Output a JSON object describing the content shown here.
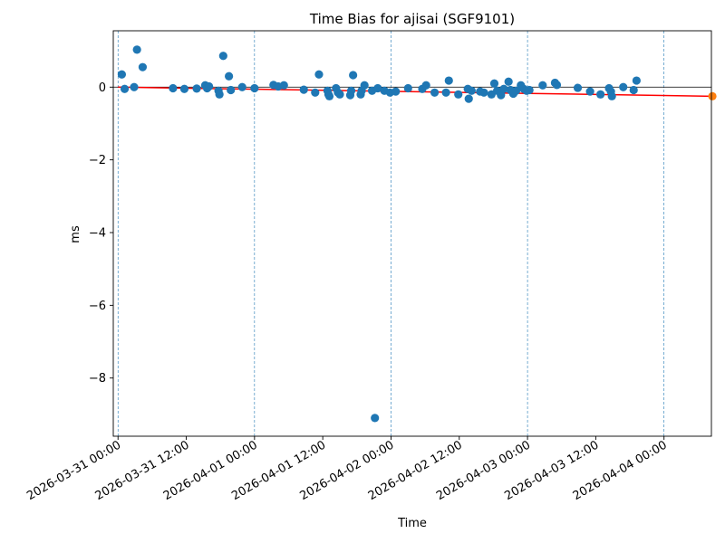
{
  "chart_data": {
    "type": "scatter",
    "title": "Time Bias for ajisai (SGF9101)",
    "xlabel": "Time",
    "ylabel": "ms",
    "xlim": [
      "2026-03-30 23:10",
      "2026-04-04 08:20"
    ],
    "ylim": [
      -9.6,
      1.55
    ],
    "x_ticks": [
      "2026-03-31 00:00",
      "2026-03-31 12:00",
      "2026-04-01 00:00",
      "2026-04-01 12:00",
      "2026-04-02 00:00",
      "2026-04-02 12:00",
      "2026-04-03 00:00",
      "2026-04-03 12:00",
      "2026-04-04 00:00"
    ],
    "x_tick_labels": [
      "2026-03-31 00:00",
      "2026-03-31 12:00",
      "2026-04-01 00:00",
      "2026-04-01 12:00",
      "2026-04-02 00:00",
      "2026-04-02 12:00",
      "2026-04-03 00:00",
      "2026-04-03 12:00",
      "2026-04-04 00:00"
    ],
    "y_ticks": [
      0,
      -2,
      -4,
      -6,
      -8
    ],
    "y_tick_labels": [
      "0",
      "−2",
      "−4",
      "−6",
      "−8"
    ],
    "vlines": [
      "2026-03-31 00:00",
      "2026-04-01 00:00",
      "2026-04-02 00:00",
      "2026-04-03 00:00",
      "2026-04-04 00:00"
    ],
    "hline": 0,
    "grid": false,
    "colors": {
      "points": "#1f77b4",
      "prediction": "#ff7f0e",
      "fit": "#ff0000",
      "vline": "#1f77b4",
      "hline": "#000000"
    },
    "series": [
      {
        "role": "measurements",
        "points": [
          {
            "x": "2026-03-31 00:40",
            "y": 0.35
          },
          {
            "x": "2026-03-31 01:10",
            "y": -0.05
          },
          {
            "x": "2026-03-31 02:50",
            "y": 0.0
          },
          {
            "x": "2026-03-31 03:20",
            "y": 1.03
          },
          {
            "x": "2026-03-31 04:20",
            "y": 0.55
          },
          {
            "x": "2026-03-31 09:40",
            "y": -0.03
          },
          {
            "x": "2026-03-31 11:40",
            "y": -0.05
          },
          {
            "x": "2026-03-31 13:50",
            "y": -0.04
          },
          {
            "x": "2026-03-31 15:20",
            "y": 0.05
          },
          {
            "x": "2026-03-31 15:40",
            "y": -0.03
          },
          {
            "x": "2026-03-31 16:00",
            "y": 0.02
          },
          {
            "x": "2026-03-31 17:40",
            "y": -0.1
          },
          {
            "x": "2026-03-31 17:50",
            "y": -0.2
          },
          {
            "x": "2026-03-31 18:30",
            "y": 0.86
          },
          {
            "x": "2026-03-31 19:30",
            "y": 0.3
          },
          {
            "x": "2026-03-31 19:50",
            "y": -0.08
          },
          {
            "x": "2026-03-31 21:50",
            "y": 0.0
          },
          {
            "x": "2026-04-01 00:00",
            "y": -0.03
          },
          {
            "x": "2026-04-01 03:20",
            "y": 0.06
          },
          {
            "x": "2026-04-01 04:10",
            "y": 0.02
          },
          {
            "x": "2026-04-01 05:10",
            "y": 0.05
          },
          {
            "x": "2026-04-01 08:40",
            "y": -0.07
          },
          {
            "x": "2026-04-01 10:40",
            "y": -0.15
          },
          {
            "x": "2026-04-01 11:20",
            "y": 0.35
          },
          {
            "x": "2026-04-01 12:50",
            "y": -0.1
          },
          {
            "x": "2026-04-01 13:00",
            "y": -0.2
          },
          {
            "x": "2026-04-01 13:10",
            "y": -0.25
          },
          {
            "x": "2026-04-01 14:20",
            "y": -0.03
          },
          {
            "x": "2026-04-01 14:40",
            "y": -0.15
          },
          {
            "x": "2026-04-01 15:00",
            "y": -0.2
          },
          {
            "x": "2026-04-01 16:50",
            "y": -0.22
          },
          {
            "x": "2026-04-01 17:00",
            "y": -0.1
          },
          {
            "x": "2026-04-01 17:20",
            "y": 0.33
          },
          {
            "x": "2026-04-01 18:40",
            "y": -0.2
          },
          {
            "x": "2026-04-01 18:50",
            "y": -0.1
          },
          {
            "x": "2026-04-01 19:20",
            "y": 0.05
          },
          {
            "x": "2026-04-01 20:40",
            "y": -0.1
          },
          {
            "x": "2026-04-01 21:10",
            "y": -9.1
          },
          {
            "x": "2026-04-01 21:40",
            "y": -0.03
          },
          {
            "x": "2026-04-01 22:50",
            "y": -0.1
          },
          {
            "x": "2026-04-01 23:50",
            "y": -0.15
          },
          {
            "x": "2026-04-02 00:50",
            "y": -0.12
          },
          {
            "x": "2026-04-02 03:00",
            "y": -0.03
          },
          {
            "x": "2026-04-02 05:30",
            "y": -0.05
          },
          {
            "x": "2026-04-02 06:10",
            "y": 0.05
          },
          {
            "x": "2026-04-02 07:40",
            "y": -0.15
          },
          {
            "x": "2026-04-02 09:40",
            "y": -0.15
          },
          {
            "x": "2026-04-02 10:10",
            "y": 0.18
          },
          {
            "x": "2026-04-02 11:50",
            "y": -0.2
          },
          {
            "x": "2026-04-02 13:30",
            "y": -0.05
          },
          {
            "x": "2026-04-02 13:40",
            "y": -0.32
          },
          {
            "x": "2026-04-02 14:10",
            "y": -0.1
          },
          {
            "x": "2026-04-02 15:40",
            "y": -0.12
          },
          {
            "x": "2026-04-02 16:20",
            "y": -0.15
          },
          {
            "x": "2026-04-02 17:40",
            "y": -0.2
          },
          {
            "x": "2026-04-02 18:10",
            "y": 0.1
          },
          {
            "x": "2026-04-02 18:40",
            "y": -0.1
          },
          {
            "x": "2026-04-02 19:20",
            "y": -0.22
          },
          {
            "x": "2026-04-02 19:50",
            "y": -0.05
          },
          {
            "x": "2026-04-02 20:40",
            "y": 0.15
          },
          {
            "x": "2026-04-02 21:00",
            "y": -0.08
          },
          {
            "x": "2026-04-02 21:30",
            "y": -0.18
          },
          {
            "x": "2026-04-02 22:00",
            "y": -0.1
          },
          {
            "x": "2026-04-02 22:50",
            "y": 0.05
          },
          {
            "x": "2026-04-02 23:20",
            "y": -0.05
          },
          {
            "x": "2026-04-02 23:50",
            "y": -0.1
          },
          {
            "x": "2026-04-03 00:20",
            "y": -0.08
          },
          {
            "x": "2026-04-03 02:40",
            "y": 0.05
          },
          {
            "x": "2026-04-03 04:50",
            "y": 0.12
          },
          {
            "x": "2026-04-03 05:10",
            "y": 0.06
          },
          {
            "x": "2026-04-03 08:50",
            "y": -0.02
          },
          {
            "x": "2026-04-03 11:00",
            "y": -0.12
          },
          {
            "x": "2026-04-03 12:50",
            "y": -0.2
          },
          {
            "x": "2026-04-03 14:20",
            "y": -0.03
          },
          {
            "x": "2026-04-03 14:40",
            "y": -0.12
          },
          {
            "x": "2026-04-03 14:50",
            "y": -0.25
          },
          {
            "x": "2026-04-03 16:50",
            "y": 0.0
          },
          {
            "x": "2026-04-03 18:40",
            "y": -0.08
          },
          {
            "x": "2026-04-03 19:10",
            "y": 0.18
          }
        ]
      },
      {
        "role": "prediction",
        "points": [
          {
            "x": "2026-04-04 08:30",
            "y": -0.25
          }
        ]
      },
      {
        "role": "fit",
        "points": [
          {
            "x": "2026-03-31 00:00",
            "y": 0.0
          },
          {
            "x": "2026-04-04 08:30",
            "y": -0.25
          }
        ]
      }
    ]
  }
}
